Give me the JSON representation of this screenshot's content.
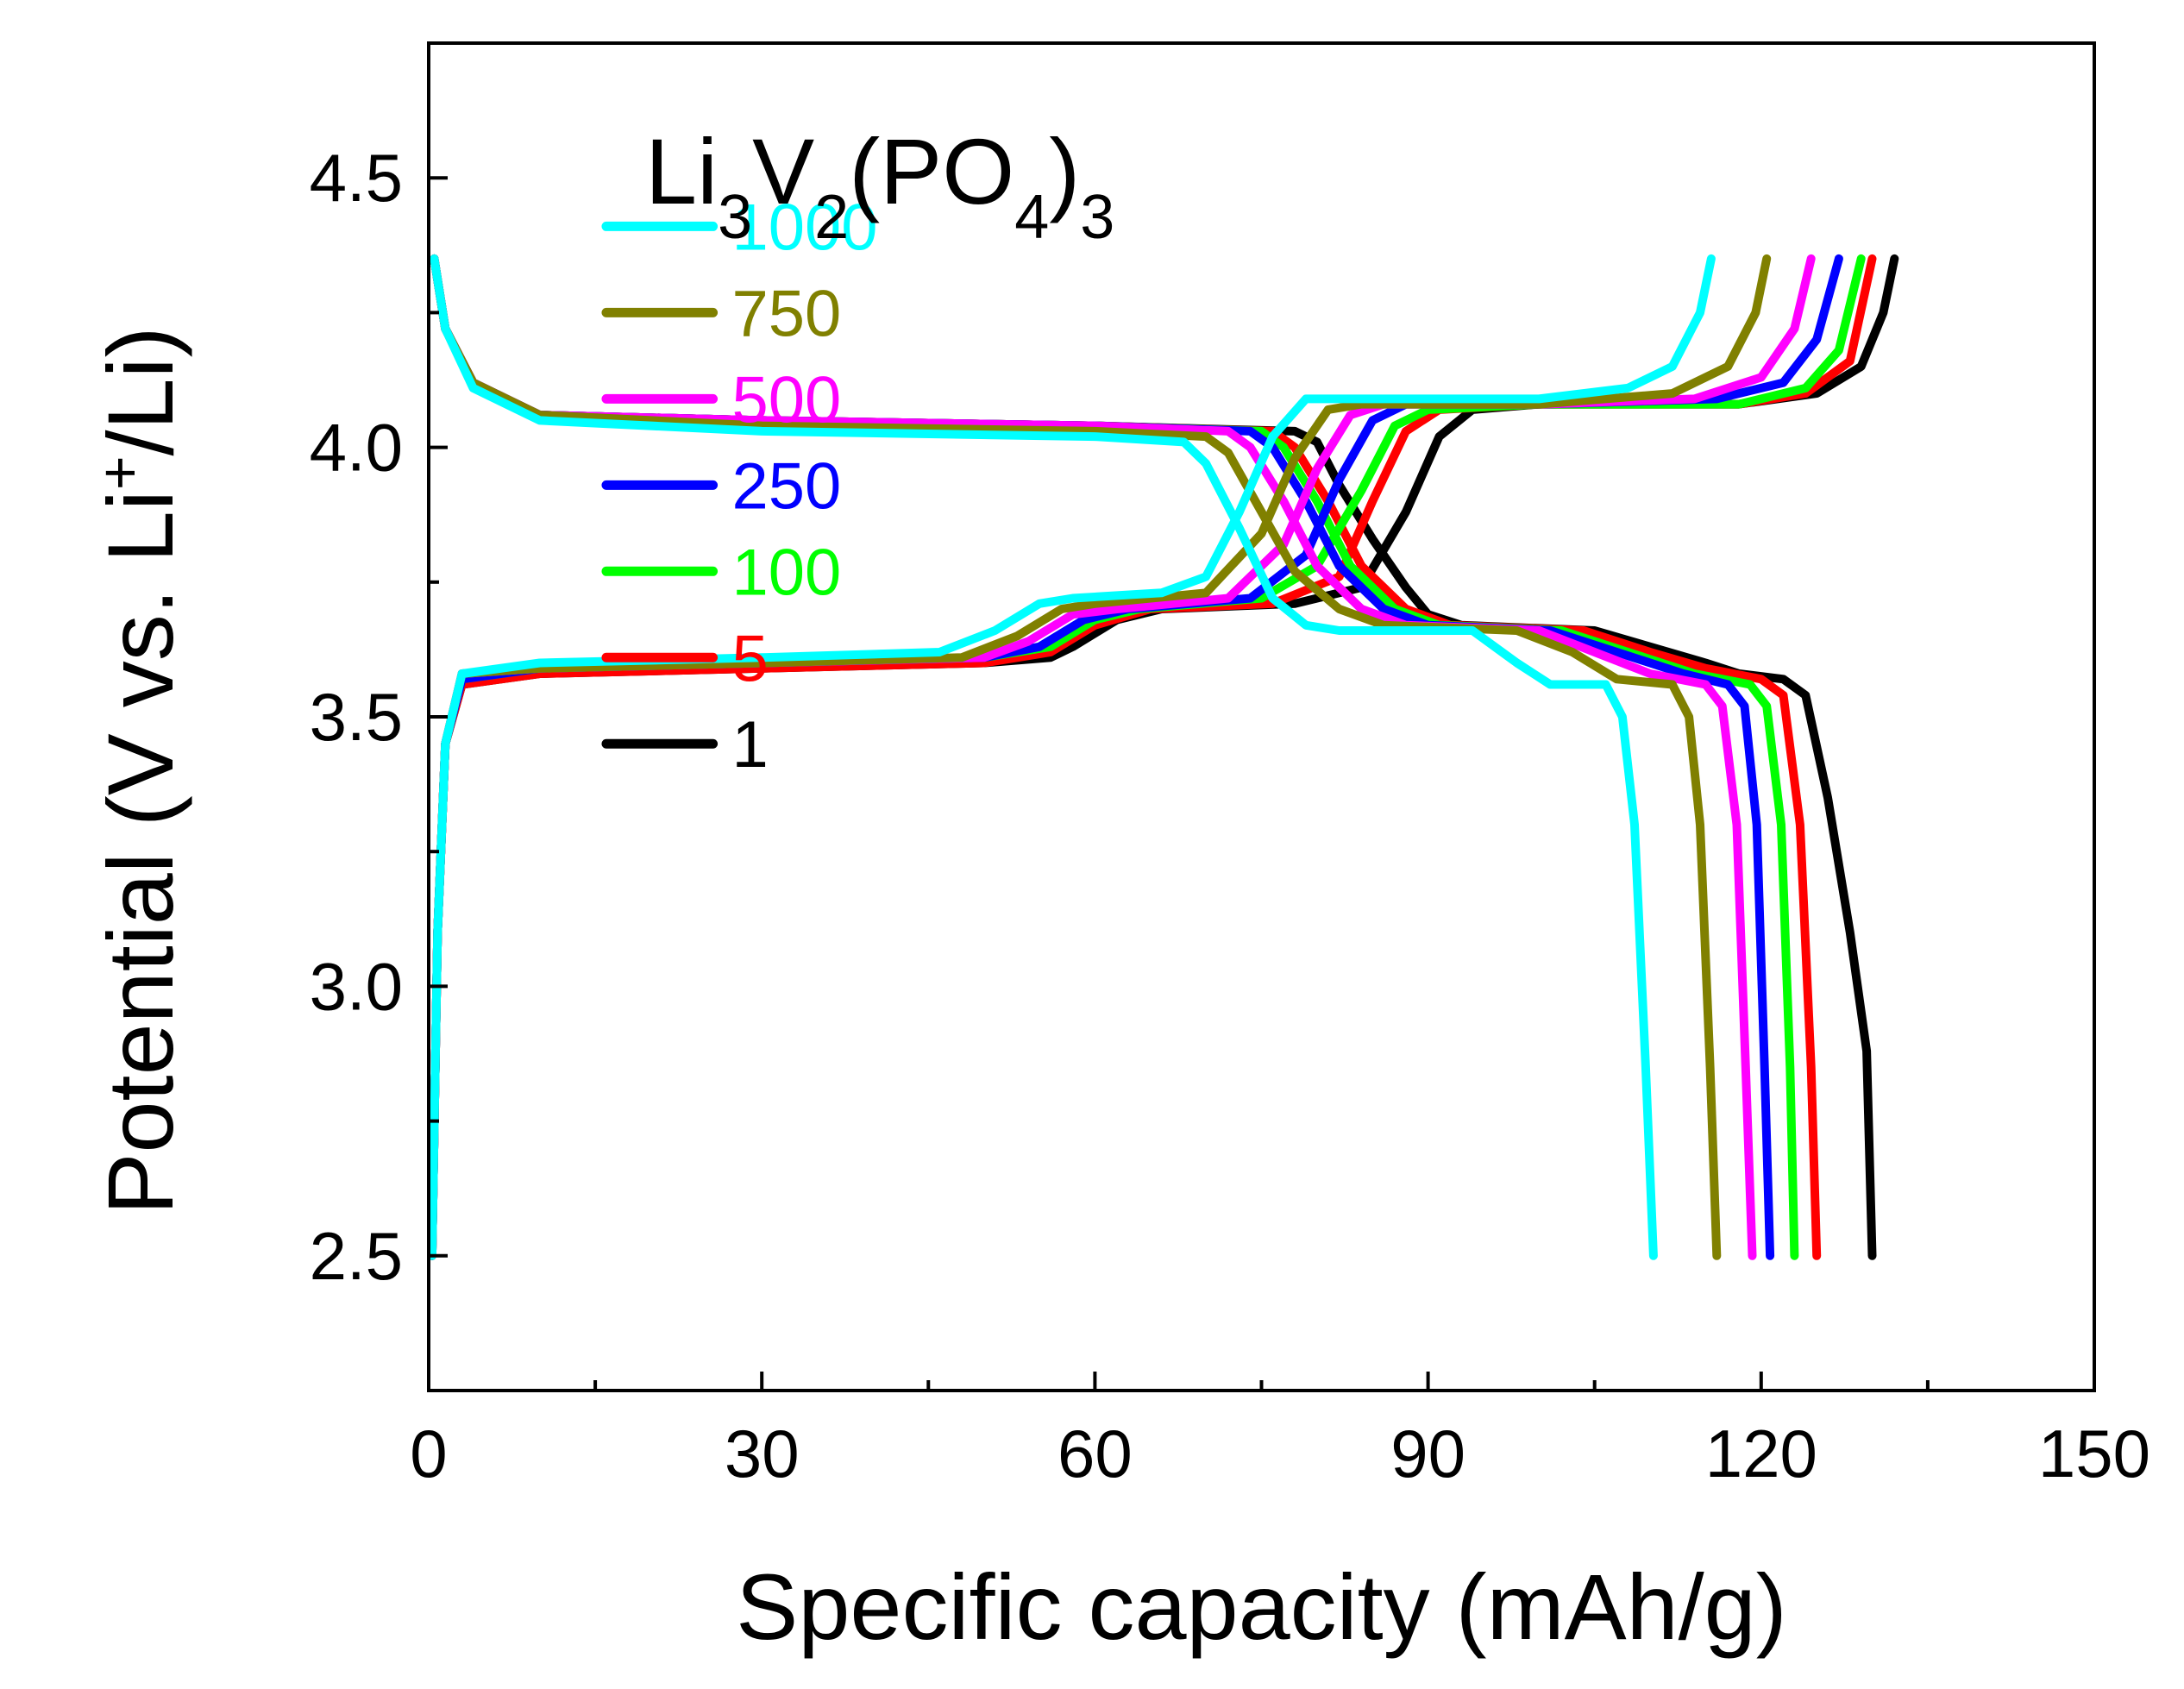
{
  "chart_data": {
    "type": "line",
    "title": {
      "base": "Li",
      "parts": [
        {
          "t": "Li",
          "sub": "3"
        },
        {
          "t": "V",
          "sub": "2"
        },
        {
          "t": "(PO",
          "sub": "4"
        },
        {
          "t": ")",
          "sub": "3"
        }
      ],
      "text": "Li3V2(PO4)3"
    },
    "xlabel": "Specific capacity (mAh/g)",
    "ylabel": "Potential (V vs. Li+/Li)",
    "ylabel_parts": {
      "pre": "Potential (V vs. Li",
      "sup": "+",
      "post": "/Li)"
    },
    "xlim": [
      0,
      150
    ],
    "ylim": [
      2.25,
      4.75
    ],
    "xticks": [
      0,
      30,
      60,
      90,
      120,
      150
    ],
    "xtick_labels": [
      "0",
      "30",
      "60",
      "90",
      "120",
      "150"
    ],
    "yticks": [
      2.5,
      3.0,
      3.5,
      4.0,
      4.5
    ],
    "ytick_labels": [
      "2.5",
      "3.0",
      "3.5",
      "4.0",
      "4.5"
    ],
    "legend_position": "center-left",
    "series": [
      {
        "name": "1",
        "color": "#000000",
        "charge": [
          [
            0.3,
            2.5
          ],
          [
            0.8,
            3.1
          ],
          [
            1.5,
            3.45
          ],
          [
            3,
            3.56
          ],
          [
            10,
            3.58
          ],
          [
            30,
            3.59
          ],
          [
            50,
            3.6
          ],
          [
            56,
            3.61
          ],
          [
            58,
            3.63
          ],
          [
            62,
            3.68
          ],
          [
            66,
            3.7
          ],
          [
            78,
            3.71
          ],
          [
            84,
            3.74
          ],
          [
            88,
            3.88
          ],
          [
            91,
            4.02
          ],
          [
            94,
            4.07
          ],
          [
            100,
            4.08
          ],
          [
            118,
            4.08
          ],
          [
            125,
            4.1
          ],
          [
            129,
            4.15
          ],
          [
            131,
            4.25
          ],
          [
            132,
            4.35
          ]
        ],
        "discharge": [
          [
            0.5,
            4.35
          ],
          [
            1.5,
            4.22
          ],
          [
            4,
            4.12
          ],
          [
            10,
            4.06
          ],
          [
            30,
            4.05
          ],
          [
            60,
            4.04
          ],
          [
            78,
            4.03
          ],
          [
            80,
            4.01
          ],
          [
            82,
            3.93
          ],
          [
            85,
            3.83
          ],
          [
            88,
            3.74
          ],
          [
            90,
            3.69
          ],
          [
            93,
            3.67
          ],
          [
            105,
            3.66
          ],
          [
            110,
            3.63
          ],
          [
            115,
            3.6
          ],
          [
            118,
            3.58
          ],
          [
            122,
            3.57
          ],
          [
            124,
            3.54
          ],
          [
            126,
            3.35
          ],
          [
            128,
            3.1
          ],
          [
            129.5,
            2.88
          ],
          [
            130,
            2.5
          ]
        ]
      },
      {
        "name": "5",
        "color": "#ff0000",
        "charge": [
          [
            0.3,
            2.5
          ],
          [
            0.8,
            3.1
          ],
          [
            1.5,
            3.45
          ],
          [
            3,
            3.56
          ],
          [
            10,
            3.58
          ],
          [
            30,
            3.59
          ],
          [
            50,
            3.6
          ],
          [
            56,
            3.62
          ],
          [
            60,
            3.67
          ],
          [
            65,
            3.7
          ],
          [
            76,
            3.71
          ],
          [
            82,
            3.76
          ],
          [
            85,
            3.9
          ],
          [
            88,
            4.03
          ],
          [
            91,
            4.07
          ],
          [
            100,
            4.08
          ],
          [
            118,
            4.08
          ],
          [
            124,
            4.1
          ],
          [
            128,
            4.16
          ],
          [
            130,
            4.35
          ]
        ],
        "discharge": [
          [
            0.5,
            4.35
          ],
          [
            1.5,
            4.22
          ],
          [
            4,
            4.12
          ],
          [
            10,
            4.06
          ],
          [
            30,
            4.05
          ],
          [
            60,
            4.04
          ],
          [
            76,
            4.03
          ],
          [
            78,
            4.0
          ],
          [
            81,
            3.9
          ],
          [
            84,
            3.78
          ],
          [
            88,
            3.7
          ],
          [
            92,
            3.67
          ],
          [
            104,
            3.66
          ],
          [
            110,
            3.62
          ],
          [
            115,
            3.59
          ],
          [
            120,
            3.57
          ],
          [
            122,
            3.54
          ],
          [
            123.5,
            3.3
          ],
          [
            124.5,
            2.85
          ],
          [
            125,
            2.5
          ]
        ]
      },
      {
        "name": "100",
        "color": "#00ff00",
        "charge": [
          [
            0.3,
            2.5
          ],
          [
            0.8,
            3.1
          ],
          [
            1.5,
            3.45
          ],
          [
            3,
            3.57
          ],
          [
            10,
            3.59
          ],
          [
            30,
            3.6
          ],
          [
            50,
            3.61
          ],
          [
            56,
            3.63
          ],
          [
            60,
            3.68
          ],
          [
            64,
            3.7
          ],
          [
            75,
            3.72
          ],
          [
            80,
            3.78
          ],
          [
            84,
            3.92
          ],
          [
            87,
            4.04
          ],
          [
            90,
            4.07
          ],
          [
            100,
            4.08
          ],
          [
            118,
            4.08
          ],
          [
            124,
            4.11
          ],
          [
            127,
            4.18
          ],
          [
            129,
            4.35
          ]
        ],
        "discharge": [
          [
            0.5,
            4.35
          ],
          [
            1.5,
            4.22
          ],
          [
            4,
            4.12
          ],
          [
            10,
            4.06
          ],
          [
            30,
            4.05
          ],
          [
            60,
            4.04
          ],
          [
            75,
            4.03
          ],
          [
            77,
            4.0
          ],
          [
            80,
            3.9
          ],
          [
            83,
            3.78
          ],
          [
            87,
            3.7
          ],
          [
            91,
            3.67
          ],
          [
            102,
            3.66
          ],
          [
            108,
            3.62
          ],
          [
            114,
            3.58
          ],
          [
            119,
            3.56
          ],
          [
            120.5,
            3.52
          ],
          [
            121.8,
            3.3
          ],
          [
            122.6,
            2.85
          ],
          [
            123,
            2.5
          ]
        ]
      },
      {
        "name": "250",
        "color": "#0000ff",
        "charge": [
          [
            0.3,
            2.5
          ],
          [
            0.8,
            3.1
          ],
          [
            1.5,
            3.45
          ],
          [
            3,
            3.57
          ],
          [
            10,
            3.59
          ],
          [
            30,
            3.6
          ],
          [
            50,
            3.61
          ],
          [
            55,
            3.63
          ],
          [
            59,
            3.68
          ],
          [
            63,
            3.7
          ],
          [
            74,
            3.72
          ],
          [
            79,
            3.8
          ],
          [
            82,
            3.94
          ],
          [
            85,
            4.05
          ],
          [
            88,
            4.08
          ],
          [
            100,
            4.08
          ],
          [
            116,
            4.09
          ],
          [
            122,
            4.12
          ],
          [
            125,
            4.2
          ],
          [
            127,
            4.35
          ]
        ],
        "discharge": [
          [
            0.5,
            4.35
          ],
          [
            1.5,
            4.22
          ],
          [
            4,
            4.12
          ],
          [
            10,
            4.06
          ],
          [
            30,
            4.05
          ],
          [
            60,
            4.04
          ],
          [
            74,
            4.03
          ],
          [
            76,
            4.0
          ],
          [
            79,
            3.9
          ],
          [
            82,
            3.78
          ],
          [
            86,
            3.7
          ],
          [
            90,
            3.67
          ],
          [
            101,
            3.66
          ],
          [
            107,
            3.62
          ],
          [
            113,
            3.58
          ],
          [
            117,
            3.56
          ],
          [
            118.5,
            3.52
          ],
          [
            119.6,
            3.3
          ],
          [
            120.3,
            2.85
          ],
          [
            120.8,
            2.5
          ]
        ]
      },
      {
        "name": "500",
        "color": "#ff00ff",
        "charge": [
          [
            0.3,
            2.5
          ],
          [
            0.8,
            3.1
          ],
          [
            1.5,
            3.45
          ],
          [
            3,
            3.58
          ],
          [
            10,
            3.59
          ],
          [
            30,
            3.6
          ],
          [
            50,
            3.61
          ],
          [
            54,
            3.64
          ],
          [
            58,
            3.69
          ],
          [
            62,
            3.7
          ],
          [
            72,
            3.72
          ],
          [
            77,
            3.82
          ],
          [
            80,
            3.96
          ],
          [
            83,
            4.06
          ],
          [
            86,
            4.08
          ],
          [
            100,
            4.08
          ],
          [
            114,
            4.09
          ],
          [
            120,
            4.13
          ],
          [
            123,
            4.22
          ],
          [
            124.5,
            4.35
          ]
        ],
        "discharge": [
          [
            0.5,
            4.35
          ],
          [
            1.5,
            4.22
          ],
          [
            4,
            4.12
          ],
          [
            10,
            4.06
          ],
          [
            30,
            4.05
          ],
          [
            60,
            4.04
          ],
          [
            72,
            4.03
          ],
          [
            74,
            4.0
          ],
          [
            77,
            3.9
          ],
          [
            80,
            3.78
          ],
          [
            84,
            3.7
          ],
          [
            88,
            3.67
          ],
          [
            100,
            3.66
          ],
          [
            105,
            3.62
          ],
          [
            110,
            3.58
          ],
          [
            115,
            3.56
          ],
          [
            116.5,
            3.52
          ],
          [
            117.8,
            3.3
          ],
          [
            118.6,
            2.85
          ],
          [
            119.2,
            2.5
          ]
        ]
      },
      {
        "name": "750",
        "color": "#808000",
        "charge": [
          [
            0.3,
            2.5
          ],
          [
            0.8,
            3.1
          ],
          [
            1.5,
            3.45
          ],
          [
            3,
            3.58
          ],
          [
            10,
            3.59
          ],
          [
            30,
            3.6
          ],
          [
            48,
            3.61
          ],
          [
            53,
            3.65
          ],
          [
            57,
            3.7
          ],
          [
            60,
            3.71
          ],
          [
            70,
            3.73
          ],
          [
            75,
            3.84
          ],
          [
            78,
            3.98
          ],
          [
            81,
            4.07
          ],
          [
            84,
            4.08
          ],
          [
            100,
            4.08
          ],
          [
            112,
            4.1
          ],
          [
            117,
            4.15
          ],
          [
            119.5,
            4.25
          ],
          [
            120.5,
            4.35
          ]
        ],
        "discharge": [
          [
            0.5,
            4.35
          ],
          [
            1.5,
            4.22
          ],
          [
            4,
            4.12
          ],
          [
            10,
            4.06
          ],
          [
            30,
            4.04
          ],
          [
            60,
            4.03
          ],
          [
            70,
            4.02
          ],
          [
            72,
            3.99
          ],
          [
            75,
            3.88
          ],
          [
            78,
            3.77
          ],
          [
            82,
            3.7
          ],
          [
            86,
            3.67
          ],
          [
            98,
            3.66
          ],
          [
            103,
            3.62
          ],
          [
            107,
            3.57
          ],
          [
            112,
            3.56
          ],
          [
            113.5,
            3.5
          ],
          [
            114.5,
            3.3
          ],
          [
            115.4,
            2.85
          ],
          [
            116,
            2.5
          ]
        ]
      },
      {
        "name": "1000",
        "color": "#00ffff",
        "charge": [
          [
            0.3,
            2.5
          ],
          [
            0.8,
            3.1
          ],
          [
            1.5,
            3.45
          ],
          [
            3,
            3.58
          ],
          [
            10,
            3.6
          ],
          [
            30,
            3.61
          ],
          [
            46,
            3.62
          ],
          [
            51,
            3.66
          ],
          [
            55,
            3.71
          ],
          [
            58,
            3.72
          ],
          [
            66,
            3.73
          ],
          [
            70,
            3.76
          ],
          [
            73,
            3.88
          ],
          [
            76,
            4.02
          ],
          [
            79,
            4.09
          ],
          [
            82,
            4.09
          ],
          [
            100,
            4.09
          ],
          [
            108,
            4.11
          ],
          [
            112,
            4.15
          ],
          [
            114.5,
            4.25
          ],
          [
            115.5,
            4.35
          ]
        ],
        "discharge": [
          [
            0.5,
            4.35
          ],
          [
            1.5,
            4.22
          ],
          [
            4,
            4.11
          ],
          [
            10,
            4.05
          ],
          [
            30,
            4.03
          ],
          [
            60,
            4.02
          ],
          [
            68,
            4.01
          ],
          [
            70,
            3.97
          ],
          [
            73,
            3.85
          ],
          [
            76,
            3.72
          ],
          [
            79,
            3.67
          ],
          [
            82,
            3.66
          ],
          [
            94,
            3.66
          ],
          [
            98,
            3.6
          ],
          [
            101,
            3.56
          ],
          [
            106,
            3.56
          ],
          [
            107.5,
            3.5
          ],
          [
            108.6,
            3.3
          ],
          [
            109.6,
            2.85
          ],
          [
            110.3,
            2.5
          ]
        ]
      }
    ]
  }
}
